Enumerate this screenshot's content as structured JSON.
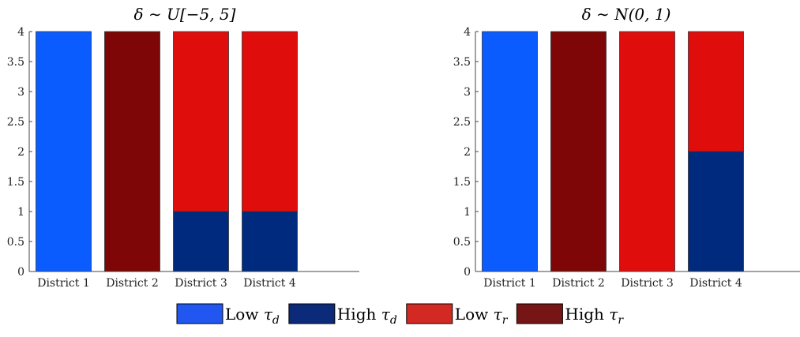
{
  "chart_data": [
    {
      "type": "bar",
      "stacked": true,
      "title": "δ ∼ U[−5, 5]",
      "categories": [
        "District 1",
        "District 2",
        "District 3",
        "District 4"
      ],
      "ylim": [
        0,
        4
      ],
      "yticks": [
        "0",
        "0.5",
        "1",
        "1.5",
        "2",
        "2.5",
        "3",
        "3.5",
        "4"
      ],
      "series": [
        {
          "name": "Low τd",
          "color": "#0b5cff",
          "values": [
            4,
            0,
            0,
            0
          ]
        },
        {
          "name": "High τd",
          "color": "#002a7e",
          "values": [
            0,
            0,
            1,
            1
          ]
        },
        {
          "name": "Low τr",
          "color": "#e00d0d",
          "values": [
            0,
            0,
            3,
            3
          ]
        },
        {
          "name": "High τr",
          "color": "#7e0606",
          "values": [
            0,
            4,
            0,
            0
          ]
        }
      ]
    },
    {
      "type": "bar",
      "stacked": true,
      "title": "δ ∼ N(0, 1)",
      "categories": [
        "District 1",
        "District 2",
        "District 3",
        "District 4"
      ],
      "ylim": [
        0,
        4
      ],
      "yticks": [
        "0",
        "0.5",
        "1",
        "1.5",
        "2",
        "2.5",
        "3",
        "3.5",
        "4"
      ],
      "series": [
        {
          "name": "Low τd",
          "color": "#0b5cff",
          "values": [
            4,
            0,
            0,
            0
          ]
        },
        {
          "name": "High τd",
          "color": "#002a7e",
          "values": [
            0,
            0,
            0,
            2
          ]
        },
        {
          "name": "Low τr",
          "color": "#e00d0d",
          "values": [
            0,
            0,
            4,
            2
          ]
        },
        {
          "name": "High τr",
          "color": "#7e0606",
          "values": [
            0,
            4,
            0,
            0
          ]
        }
      ]
    }
  ],
  "legend": {
    "position": "bottom-center",
    "items": [
      {
        "name": "Low τd",
        "color": "#2157f0"
      },
      {
        "name": "High τd",
        "color": "#0c2a7a"
      },
      {
        "name": "Low τr",
        "color": "#d22a22"
      },
      {
        "name": "High τr",
        "color": "#761515"
      }
    ]
  }
}
